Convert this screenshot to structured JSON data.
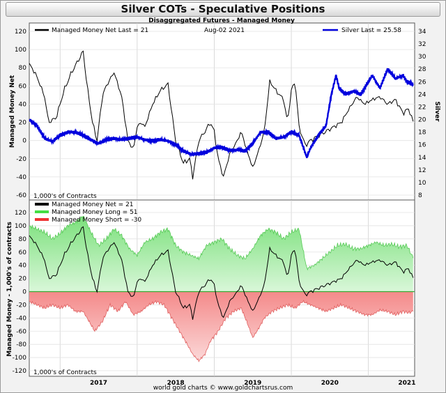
{
  "title": "Silver COTs - Speculative Positions",
  "chart_data": [
    {
      "type": "line",
      "subtitle": "Disaggregated Futures - Managed Money",
      "date_label": "Aug-02 2021",
      "left_axis_label": "Managed Money Net",
      "right_axis_label": "Silver",
      "units_note": "1,000's of Contracts",
      "ylim": [
        -60,
        120
      ],
      "ylim_right": [
        8,
        34
      ],
      "yticks": [
        -60,
        -40,
        -20,
        0,
        20,
        40,
        60,
        80,
        100,
        120
      ],
      "yticks_right": [
        8,
        10,
        12,
        14,
        16,
        18,
        20,
        22,
        24,
        26,
        28,
        30,
        32,
        34
      ],
      "x_range": [
        2016.6,
        2021.6
      ],
      "series": [
        {
          "name": "Managed Money Net",
          "legend": "Managed Money Net   Last = 21",
          "color": "#000000",
          "axis": "left",
          "x": [
            2016.6,
            2016.7,
            2016.8,
            2016.85,
            2016.95,
            2017.05,
            2017.15,
            2017.3,
            2017.35,
            2017.42,
            2017.48,
            2017.55,
            2017.6,
            2017.7,
            2017.8,
            2017.88,
            2017.95,
            2018.0,
            2018.05,
            2018.1,
            2018.2,
            2018.3,
            2018.4,
            2018.45,
            2018.5,
            2018.6,
            2018.68,
            2018.72,
            2018.8,
            2018.88,
            2018.95,
            2019.0,
            2019.05,
            2019.12,
            2019.2,
            2019.3,
            2019.35,
            2019.42,
            2019.5,
            2019.58,
            2019.65,
            2019.72,
            2019.8,
            2019.9,
            2019.95,
            2020.0,
            2020.05,
            2020.1,
            2020.18,
            2020.25,
            2020.35,
            2020.45,
            2020.55,
            2020.65,
            2020.75,
            2020.85,
            2020.95,
            2021.05,
            2021.15,
            2021.25,
            2021.35,
            2021.45,
            2021.52,
            2021.58
          ],
          "values": [
            85,
            70,
            48,
            20,
            25,
            55,
            75,
            98,
            60,
            20,
            0,
            50,
            60,
            75,
            48,
            0,
            -10,
            15,
            20,
            15,
            40,
            55,
            62,
            30,
            0,
            -25,
            -20,
            -40,
            0,
            10,
            20,
            10,
            -20,
            -40,
            -15,
            0,
            10,
            -10,
            -30,
            -10,
            10,
            65,
            55,
            45,
            20,
            55,
            65,
            15,
            -5,
            0,
            5,
            10,
            15,
            20,
            35,
            48,
            40,
            45,
            48,
            40,
            45,
            30,
            35,
            21
          ]
        },
        {
          "name": "Silver",
          "legend": "Silver Last = 25.58",
          "color": "#0000dd",
          "axis": "right",
          "x": [
            2016.6,
            2016.7,
            2016.8,
            2016.9,
            2017.0,
            2017.1,
            2017.2,
            2017.3,
            2017.4,
            2017.5,
            2017.6,
            2017.7,
            2017.8,
            2017.9,
            2018.0,
            2018.1,
            2018.2,
            2018.3,
            2018.4,
            2018.5,
            2018.6,
            2018.7,
            2018.8,
            2018.9,
            2019.0,
            2019.1,
            2019.2,
            2019.3,
            2019.4,
            2019.5,
            2019.6,
            2019.7,
            2019.8,
            2019.9,
            2020.0,
            2020.1,
            2020.2,
            2020.25,
            2020.35,
            2020.45,
            2020.52,
            2020.58,
            2020.62,
            2020.7,
            2020.8,
            2020.9,
            2021.0,
            2021.05,
            2021.1,
            2021.15,
            2021.25,
            2021.35,
            2021.45,
            2021.5,
            2021.58
          ],
          "values": [
            20.0,
            19.0,
            17.0,
            16.5,
            17.5,
            18.0,
            18.0,
            17.5,
            16.8,
            16.2,
            16.8,
            17.0,
            16.8,
            17.0,
            17.2,
            16.8,
            16.6,
            16.8,
            16.6,
            16.0,
            15.0,
            14.5,
            14.6,
            14.8,
            15.5,
            15.6,
            15.1,
            15.2,
            15.0,
            16.2,
            18.0,
            18.0,
            17.0,
            17.2,
            18.0,
            17.5,
            14.0,
            15.5,
            17.5,
            19.0,
            24.0,
            27.0,
            25.0,
            24.0,
            24.5,
            24.0,
            26.0,
            27.0,
            26.0,
            25.0,
            28.0,
            26.5,
            27.0,
            26.0,
            25.58
          ]
        }
      ]
    },
    {
      "type": "area",
      "ylabel": "Managed Money - 1,000's of contracts",
      "units_note": "1,000's of Contracts",
      "ylim": [
        -120,
        120
      ],
      "yticks": [
        -120,
        -100,
        -80,
        -60,
        -40,
        -20,
        0,
        20,
        40,
        60,
        80,
        100,
        120
      ],
      "x_range": [
        2016.6,
        2021.6
      ],
      "xticks": [
        {
          "x": 2017.0,
          "label": "2017"
        },
        {
          "x": 2018.0,
          "label": "2018"
        },
        {
          "x": 2019.0,
          "label": "2019"
        },
        {
          "x": 2020.0,
          "label": "2020"
        },
        {
          "x": 2021.0,
          "label": "2021"
        }
      ],
      "series": [
        {
          "name": "Managed Money Net",
          "legend": "Managed Money Net     = 21",
          "color": "#000000",
          "x": [
            2016.6,
            2016.7,
            2016.8,
            2016.85,
            2016.95,
            2017.05,
            2017.15,
            2017.3,
            2017.35,
            2017.42,
            2017.48,
            2017.55,
            2017.6,
            2017.7,
            2017.8,
            2017.88,
            2017.95,
            2018.0,
            2018.05,
            2018.1,
            2018.2,
            2018.3,
            2018.4,
            2018.45,
            2018.5,
            2018.6,
            2018.68,
            2018.72,
            2018.8,
            2018.88,
            2018.95,
            2019.0,
            2019.05,
            2019.12,
            2019.2,
            2019.3,
            2019.35,
            2019.42,
            2019.5,
            2019.58,
            2019.65,
            2019.72,
            2019.8,
            2019.9,
            2019.95,
            2020.0,
            2020.05,
            2020.1,
            2020.18,
            2020.25,
            2020.35,
            2020.45,
            2020.55,
            2020.65,
            2020.75,
            2020.85,
            2020.95,
            2021.05,
            2021.15,
            2021.25,
            2021.35,
            2021.45,
            2021.52,
            2021.58
          ],
          "values": [
            85,
            70,
            48,
            20,
            25,
            55,
            75,
            98,
            60,
            20,
            0,
            50,
            60,
            75,
            48,
            0,
            -10,
            15,
            20,
            15,
            40,
            55,
            62,
            30,
            0,
            -25,
            -20,
            -40,
            0,
            10,
            20,
            10,
            -20,
            -40,
            -15,
            0,
            10,
            -10,
            -30,
            -10,
            10,
            65,
            55,
            45,
            20,
            55,
            65,
            15,
            -5,
            0,
            5,
            10,
            15,
            20,
            35,
            48,
            40,
            45,
            48,
            40,
            45,
            30,
            35,
            21
          ]
        },
        {
          "name": "Managed Money Long",
          "legend": "Managed Money Long     = 51",
          "color": "#22cc22",
          "x": [
            2016.6,
            2016.7,
            2016.8,
            2016.9,
            2017.0,
            2017.1,
            2017.2,
            2017.3,
            2017.4,
            2017.5,
            2017.6,
            2017.7,
            2017.8,
            2017.9,
            2018.0,
            2018.1,
            2018.2,
            2018.3,
            2018.4,
            2018.5,
            2018.6,
            2018.7,
            2018.8,
            2018.9,
            2019.0,
            2019.1,
            2019.2,
            2019.3,
            2019.4,
            2019.5,
            2019.6,
            2019.7,
            2019.8,
            2019.9,
            2020.0,
            2020.1,
            2020.2,
            2020.3,
            2020.4,
            2020.5,
            2020.6,
            2020.7,
            2020.8,
            2020.9,
            2021.0,
            2021.1,
            2021.2,
            2021.3,
            2021.4,
            2021.5,
            2021.58
          ],
          "values": [
            100,
            95,
            90,
            80,
            88,
            100,
            105,
            115,
            90,
            70,
            80,
            95,
            85,
            65,
            55,
            75,
            80,
            90,
            95,
            70,
            60,
            55,
            50,
            70,
            75,
            80,
            65,
            55,
            50,
            65,
            85,
            95,
            90,
            80,
            90,
            95,
            35,
            40,
            50,
            60,
            70,
            72,
            65,
            65,
            70,
            75,
            70,
            72,
            68,
            70,
            51
          ]
        },
        {
          "name": "Managed Money Short",
          "legend": "Managed Money Short = -30",
          "color": "#ee3333",
          "x": [
            2016.6,
            2016.7,
            2016.8,
            2016.9,
            2017.0,
            2017.1,
            2017.2,
            2017.3,
            2017.35,
            2017.45,
            2017.55,
            2017.65,
            2017.75,
            2017.85,
            2017.95,
            2018.05,
            2018.15,
            2018.25,
            2018.35,
            2018.45,
            2018.55,
            2018.65,
            2018.72,
            2018.8,
            2018.88,
            2018.95,
            2019.05,
            2019.15,
            2019.25,
            2019.35,
            2019.42,
            2019.5,
            2019.58,
            2019.65,
            2019.75,
            2019.85,
            2019.95,
            2020.05,
            2020.15,
            2020.25,
            2020.35,
            2020.45,
            2020.55,
            2020.65,
            2020.75,
            2020.85,
            2020.95,
            2021.05,
            2021.15,
            2021.25,
            2021.35,
            2021.45,
            2021.52,
            2021.58
          ],
          "values": [
            -15,
            -20,
            -25,
            -20,
            -25,
            -20,
            -30,
            -30,
            -40,
            -60,
            -45,
            -20,
            -30,
            -15,
            -35,
            -30,
            -20,
            -15,
            -20,
            -40,
            -60,
            -80,
            -95,
            -105,
            -95,
            -75,
            -60,
            -40,
            -30,
            -25,
            -45,
            -70,
            -55,
            -40,
            -30,
            -25,
            -20,
            -25,
            -15,
            -20,
            -25,
            -30,
            -25,
            -20,
            -25,
            -30,
            -35,
            -35,
            -28,
            -30,
            -35,
            -30,
            -32,
            -30
          ]
        }
      ]
    }
  ],
  "footer": "world gold charts © www.goldchartsrus.com"
}
